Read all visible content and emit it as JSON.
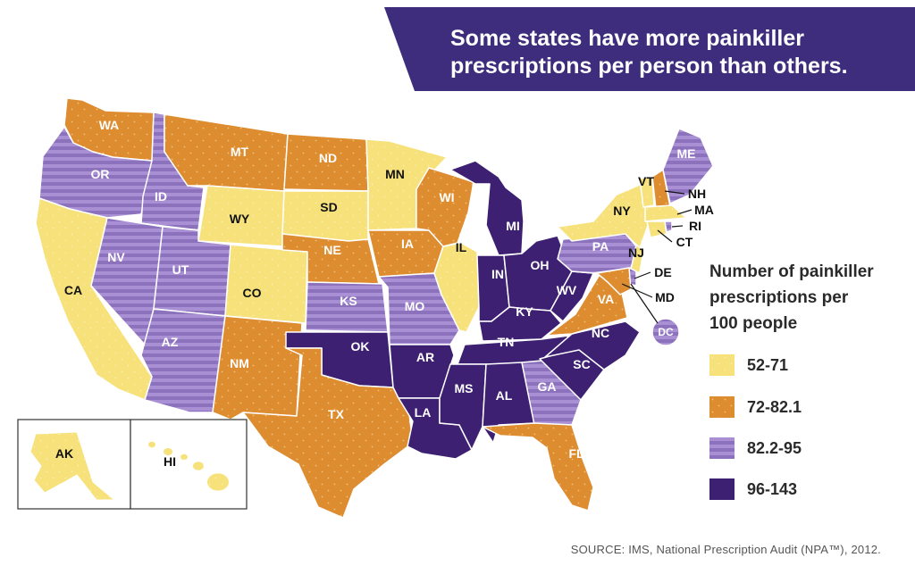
{
  "banner": {
    "line1": "Some states have more painkiller",
    "line2": "prescriptions per person than others."
  },
  "legend": {
    "title_line1": "Number of painkiller",
    "title_line2": "prescriptions per",
    "title_line3": "100 people",
    "items": [
      {
        "label": "52-71",
        "category": "low"
      },
      {
        "label": "72-82.1",
        "category": "mid"
      },
      {
        "label": "82.2-95",
        "category": "high"
      },
      {
        "label": "96-143",
        "category": "top"
      }
    ]
  },
  "colors": {
    "low": "#f6e17b",
    "mid": "#dd8c2f",
    "high": "#9e84c8",
    "top": "#3d2072",
    "banner": "#3d2d7c",
    "border": "#ffffff"
  },
  "states": {
    "WA": "mid",
    "OR": "high",
    "CA": "low",
    "ID": "high",
    "NV": "high",
    "MT": "mid",
    "WY": "low",
    "UT": "high",
    "AZ": "high",
    "CO": "low",
    "NM": "mid",
    "ND": "mid",
    "SD": "low",
    "NE": "mid",
    "KS": "high",
    "OK": "top",
    "TX": "mid",
    "MN": "low",
    "IA": "mid",
    "MO": "high",
    "AR": "top",
    "LA": "top",
    "WI": "mid",
    "IL": "low",
    "MI": "top",
    "IN": "top",
    "OH": "top",
    "KY": "top",
    "TN": "top",
    "MS": "top",
    "AL": "top",
    "GA": "high",
    "FL": "mid",
    "SC": "top",
    "NC": "top",
    "VA": "mid",
    "WV": "top",
    "PA": "high",
    "NY": "low",
    "VT": "low",
    "NH": "mid",
    "ME": "high",
    "MA": "low",
    "RI": "high",
    "CT": "low",
    "NJ": "low",
    "DE": "high",
    "MD": "mid",
    "DC": "high",
    "AK": "low",
    "HI": "low"
  },
  "source": "SOURCE: IMS, National Prescription Audit (NPA™), 2012."
}
